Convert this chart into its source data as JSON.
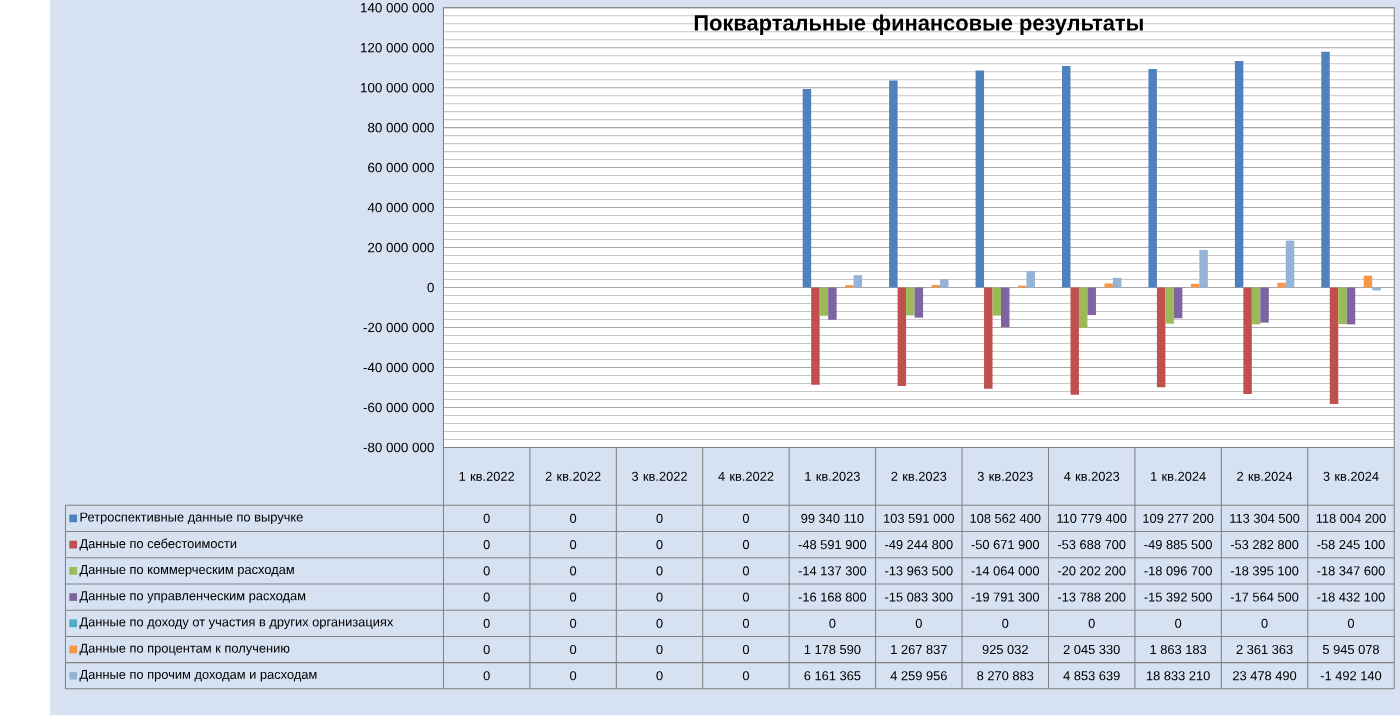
{
  "chart_data": {
    "type": "bar",
    "title": "Поквартальные финансовые результаты",
    "categories": [
      "1 кв.2022",
      "2 кв.2022",
      "3 кв.2022",
      "4 кв.2022",
      "1 кв.2023",
      "2 кв.2023",
      "3 кв.2023",
      "4 кв.2023",
      "1 кв.2024",
      "2 кв.2024",
      "3 кв.2024"
    ],
    "series": [
      {
        "name": "Ретроспективные данные по выручке",
        "color": "#4f81bd",
        "values": [
          0,
          0,
          0,
          0,
          99340110,
          103591000,
          108562400,
          110779400,
          109277200,
          113304500,
          118004200
        ],
        "value_labels": [
          "0",
          "0",
          "0",
          "0",
          "99 340 110",
          "103 591 000",
          "108 562 400",
          "110 779 400",
          "109 277 200",
          "113 304 500",
          "118 004 200"
        ]
      },
      {
        "name": "Данные по себестоимости",
        "color": "#c0504d",
        "values": [
          0,
          0,
          0,
          0,
          -48591900,
          -49244800,
          -50671900,
          -53688700,
          -49885500,
          -53282800,
          -58245100
        ],
        "value_labels": [
          "0",
          "0",
          "0",
          "0",
          "-48 591 900",
          "-49 244 800",
          "-50 671 900",
          "-53 688 700",
          "-49 885 500",
          "-53 282 800",
          "-58 245 100"
        ]
      },
      {
        "name": "Данные по коммерческим расходам",
        "color": "#9bbb59",
        "values": [
          0,
          0,
          0,
          0,
          -14137300,
          -13963500,
          -14064000,
          -20202200,
          -18096700,
          -18395100,
          -18347600
        ],
        "value_labels": [
          "0",
          "0",
          "0",
          "0",
          "-14 137 300",
          "-13 963 500",
          "-14 064 000",
          "-20 202 200",
          "-18 096 700",
          "-18 395 100",
          "-18 347 600"
        ]
      },
      {
        "name": "Данные по управленческим расходам",
        "color": "#8064a2",
        "values": [
          0,
          0,
          0,
          0,
          -16168800,
          -15083300,
          -19791300,
          -13788200,
          -15392500,
          -17564500,
          -18432100
        ],
        "value_labels": [
          "0",
          "0",
          "0",
          "0",
          "-16 168 800",
          "-15 083 300",
          "-19 791 300",
          "-13 788 200",
          "-15 392 500",
          "-17 564 500",
          "-18 432 100"
        ]
      },
      {
        "name": "Данные по доходу от участия в других организациях",
        "color": "#4bacc6",
        "values": [
          0,
          0,
          0,
          0,
          0,
          0,
          0,
          0,
          0,
          0,
          0
        ],
        "value_labels": [
          "0",
          "0",
          "0",
          "0",
          "0",
          "0",
          "0",
          "0",
          "0",
          "0",
          "0"
        ]
      },
      {
        "name": "Данные по процентам к получению",
        "color": "#f79646",
        "values": [
          0,
          0,
          0,
          0,
          1178590,
          1267837,
          925032,
          2045330,
          1863183,
          2361363,
          5945078
        ],
        "value_labels": [
          "0",
          "0",
          "0",
          "0",
          "1 178 590",
          "1 267 837",
          "925 032",
          "2 045 330",
          "1 863 183",
          "2 361 363",
          "5 945 078"
        ]
      },
      {
        "name": "Данные по прочим доходам и расходам",
        "color": "#95b3d7",
        "values": [
          0,
          0,
          0,
          0,
          6161365,
          4259956,
          8270883,
          4853639,
          18833210,
          23478490,
          -1492140
        ],
        "value_labels": [
          "0",
          "0",
          "0",
          "0",
          "6 161 365",
          "4 259 956",
          "8 270 883",
          "4 853 639",
          "18 833 210",
          "23 478 490",
          "-1 492 140"
        ]
      }
    ],
    "ylim": [
      -80000000,
      140000000
    ],
    "yticks": [
      {
        "value": -80000000,
        "label": "-80 000 000"
      },
      {
        "value": -60000000,
        "label": "-60 000 000"
      },
      {
        "value": -40000000,
        "label": "-40 000 000"
      },
      {
        "value": -20000000,
        "label": "-20 000 000"
      },
      0,
      {
        "value": 20000000,
        "label": "20 000 000"
      },
      {
        "value": 40000000,
        "label": "40 000 000"
      },
      {
        "value": 60000000,
        "label": "60 000 000"
      },
      {
        "value": 80000000,
        "label": "80 000 000"
      },
      {
        "value": 100000000,
        "label": "100 000 000"
      },
      {
        "value": 120000000,
        "label": "120 000 000"
      },
      {
        "value": 140000000,
        "label": "140 000 000"
      }
    ],
    "grid": true,
    "legend": "bottom"
  }
}
